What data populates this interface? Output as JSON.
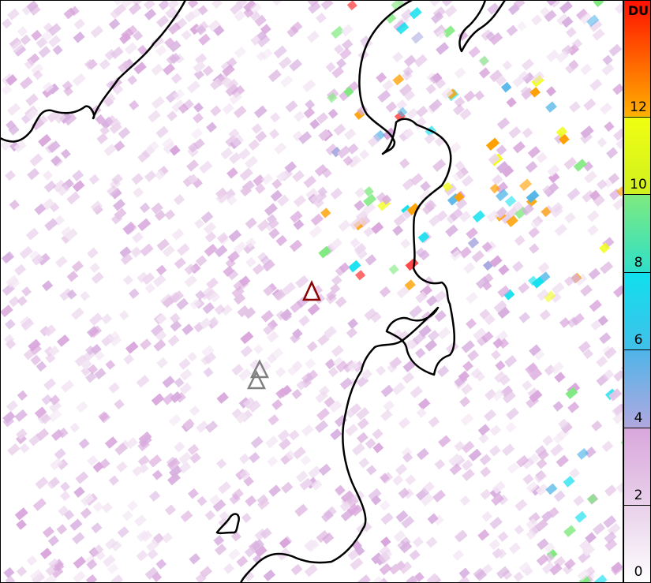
{
  "colorbar": {
    "unit": "DU",
    "ticks": [
      0,
      2,
      4,
      6,
      8,
      10,
      12
    ],
    "range": [
      0,
      15
    ],
    "colors": [
      "#ffffff",
      "#e8d0ea",
      "#d9a6dc",
      "#a8a8e0",
      "#4fb4e8",
      "#10e0ee",
      "#7eea7e",
      "#f0ff10",
      "#ffa000",
      "#ff0000"
    ]
  },
  "markers": [
    {
      "type": "volcano-triangle",
      "color": "#8b0000"
    },
    {
      "type": "volcano-triangle",
      "color": "#808080"
    },
    {
      "type": "volcano-triangle",
      "color": "#808080"
    }
  ],
  "coastline_color": "#000000"
}
